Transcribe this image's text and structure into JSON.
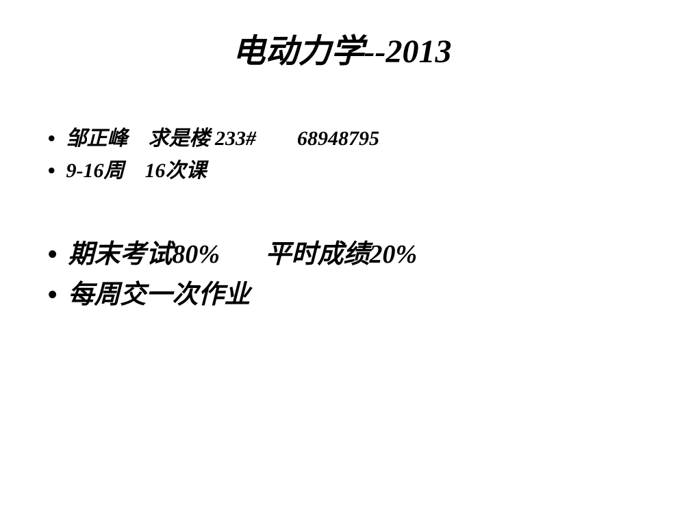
{
  "slide": {
    "title": "电动力学--2013",
    "title_fontsize": 48,
    "title_color": "#000000",
    "background_color": "#ffffff",
    "bullets_group1": [
      {
        "text": "邹正峰    求是楼 233#        68948795",
        "fontsize": 30
      },
      {
        "text": "9-16周    16次课",
        "fontsize": 30
      }
    ],
    "bullets_group2": [
      {
        "text": "期末考试80%       平时成绩20%",
        "fontsize": 38
      },
      {
        "text": "每周交一次作业",
        "fontsize": 38
      }
    ],
    "bullet_marker": "•",
    "font_style": "italic",
    "font_weight": "bold"
  }
}
